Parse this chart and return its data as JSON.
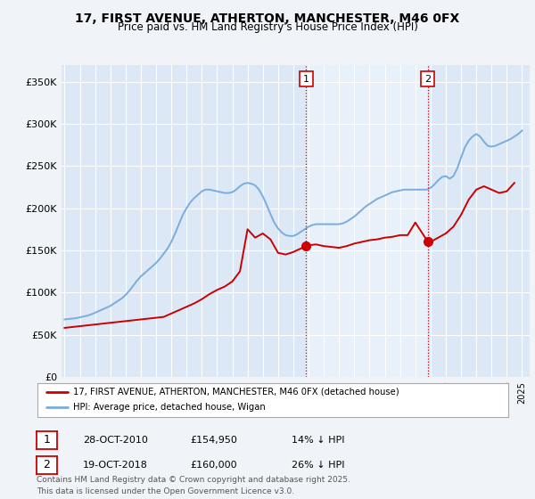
{
  "title": "17, FIRST AVENUE, ATHERTON, MANCHESTER, M46 0FX",
  "subtitle": "Price paid vs. HM Land Registry's House Price Index (HPI)",
  "background_color": "#f0f4f8",
  "plot_bg_color": "#dce8f5",
  "shade_color": "#e8f0fa",
  "ylabel_ticks": [
    "£0",
    "£50K",
    "£100K",
    "£150K",
    "£200K",
    "£250K",
    "£300K",
    "£350K"
  ],
  "ytick_vals": [
    0,
    50000,
    100000,
    150000,
    200000,
    250000,
    300000,
    350000
  ],
  "ylim": [
    0,
    370000
  ],
  "xlim_start": 1994.8,
  "xlim_end": 2025.5,
  "marker1_x": 2010.83,
  "marker2_x": 2018.83,
  "legend_house_label": "17, FIRST AVENUE, ATHERTON, MANCHESTER, M46 0FX (detached house)",
  "legend_hpi_label": "HPI: Average price, detached house, Wigan",
  "house_color": "#cc0000",
  "hpi_color": "#7aaddc",
  "annotation1_date": "28-OCT-2010",
  "annotation1_price": "£154,950",
  "annotation1_pct": "14% ↓ HPI",
  "annotation2_date": "19-OCT-2018",
  "annotation2_price": "£160,000",
  "annotation2_pct": "26% ↓ HPI",
  "footer_text": "Contains HM Land Registry data © Crown copyright and database right 2025.\nThis data is licensed under the Open Government Licence v3.0.",
  "hpi_data_x": [
    1995.0,
    1995.25,
    1995.5,
    1995.75,
    1996.0,
    1996.25,
    1996.5,
    1996.75,
    1997.0,
    1997.25,
    1997.5,
    1997.75,
    1998.0,
    1998.25,
    1998.5,
    1998.75,
    1999.0,
    1999.25,
    1999.5,
    1999.75,
    2000.0,
    2000.25,
    2000.5,
    2000.75,
    2001.0,
    2001.25,
    2001.5,
    2001.75,
    2002.0,
    2002.25,
    2002.5,
    2002.75,
    2003.0,
    2003.25,
    2003.5,
    2003.75,
    2004.0,
    2004.25,
    2004.5,
    2004.75,
    2005.0,
    2005.25,
    2005.5,
    2005.75,
    2006.0,
    2006.25,
    2006.5,
    2006.75,
    2007.0,
    2007.25,
    2007.5,
    2007.75,
    2008.0,
    2008.25,
    2008.5,
    2008.75,
    2009.0,
    2009.25,
    2009.5,
    2009.75,
    2010.0,
    2010.25,
    2010.5,
    2010.75,
    2011.0,
    2011.25,
    2011.5,
    2011.75,
    2012.0,
    2012.25,
    2012.5,
    2012.75,
    2013.0,
    2013.25,
    2013.5,
    2013.75,
    2014.0,
    2014.25,
    2014.5,
    2014.75,
    2015.0,
    2015.25,
    2015.5,
    2015.75,
    2016.0,
    2016.25,
    2016.5,
    2016.75,
    2017.0,
    2017.25,
    2017.5,
    2017.75,
    2018.0,
    2018.25,
    2018.5,
    2018.75,
    2019.0,
    2019.25,
    2019.5,
    2019.75,
    2020.0,
    2020.25,
    2020.5,
    2020.75,
    2021.0,
    2021.25,
    2021.5,
    2021.75,
    2022.0,
    2022.25,
    2022.5,
    2022.75,
    2023.0,
    2023.25,
    2023.5,
    2023.75,
    2024.0,
    2024.25,
    2024.5,
    2024.75,
    2025.0
  ],
  "hpi_data_y": [
    68000,
    68500,
    69000,
    69500,
    70500,
    71500,
    72500,
    74000,
    76000,
    78000,
    80000,
    82000,
    84000,
    87000,
    90000,
    93000,
    97000,
    102000,
    108000,
    114000,
    119000,
    123000,
    127000,
    131000,
    135000,
    140000,
    146000,
    152000,
    160000,
    170000,
    181000,
    192000,
    200000,
    207000,
    212000,
    216000,
    220000,
    222000,
    222000,
    221000,
    220000,
    219000,
    218000,
    218000,
    219000,
    222000,
    226000,
    229000,
    230000,
    229000,
    227000,
    222000,
    214000,
    204000,
    193000,
    183000,
    176000,
    171000,
    168000,
    167000,
    167000,
    169000,
    172000,
    175000,
    178000,
    180000,
    181000,
    181000,
    181000,
    181000,
    181000,
    181000,
    181000,
    182000,
    184000,
    187000,
    190000,
    194000,
    198000,
    202000,
    205000,
    208000,
    211000,
    213000,
    215000,
    217000,
    219000,
    220000,
    221000,
    222000,
    222000,
    222000,
    222000,
    222000,
    222000,
    222000,
    224000,
    228000,
    233000,
    237000,
    238000,
    235000,
    238000,
    247000,
    260000,
    272000,
    280000,
    285000,
    288000,
    285000,
    279000,
    274000,
    273000,
    274000,
    276000,
    278000,
    280000,
    282000,
    285000,
    288000,
    292000
  ],
  "house_data_x": [
    1995.0,
    1995.5,
    1996.0,
    1996.5,
    1997.0,
    1997.5,
    1998.0,
    1998.5,
    1999.0,
    1999.5,
    2000.0,
    2000.5,
    2001.0,
    2001.5,
    2002.0,
    2002.5,
    2003.0,
    2003.5,
    2004.0,
    2004.5,
    2005.0,
    2005.5,
    2006.0,
    2006.5,
    2007.0,
    2007.5,
    2008.0,
    2008.5,
    2009.0,
    2009.5,
    2010.0,
    2010.83,
    2011.0,
    2011.5,
    2012.0,
    2012.5,
    2013.0,
    2013.5,
    2014.0,
    2014.5,
    2015.0,
    2015.5,
    2016.0,
    2016.5,
    2017.0,
    2017.5,
    2018.0,
    2018.83,
    2019.0,
    2019.5,
    2020.0,
    2020.5,
    2021.0,
    2021.5,
    2022.0,
    2022.5,
    2023.0,
    2023.5,
    2024.0,
    2024.5
  ],
  "house_data_y": [
    58000,
    59000,
    60000,
    61000,
    62000,
    63000,
    64000,
    65000,
    66000,
    67000,
    68000,
    69000,
    70000,
    71000,
    75000,
    79000,
    83000,
    87000,
    92000,
    98000,
    103000,
    107000,
    113000,
    125000,
    175000,
    165000,
    170000,
    163000,
    147000,
    145000,
    148000,
    154950,
    156000,
    157000,
    155000,
    154000,
    153000,
    155000,
    158000,
    160000,
    162000,
    163000,
    165000,
    166000,
    168000,
    168000,
    183000,
    160000,
    160000,
    165000,
    170000,
    178000,
    192000,
    210000,
    222000,
    226000,
    222000,
    218000,
    220000,
    230000
  ]
}
